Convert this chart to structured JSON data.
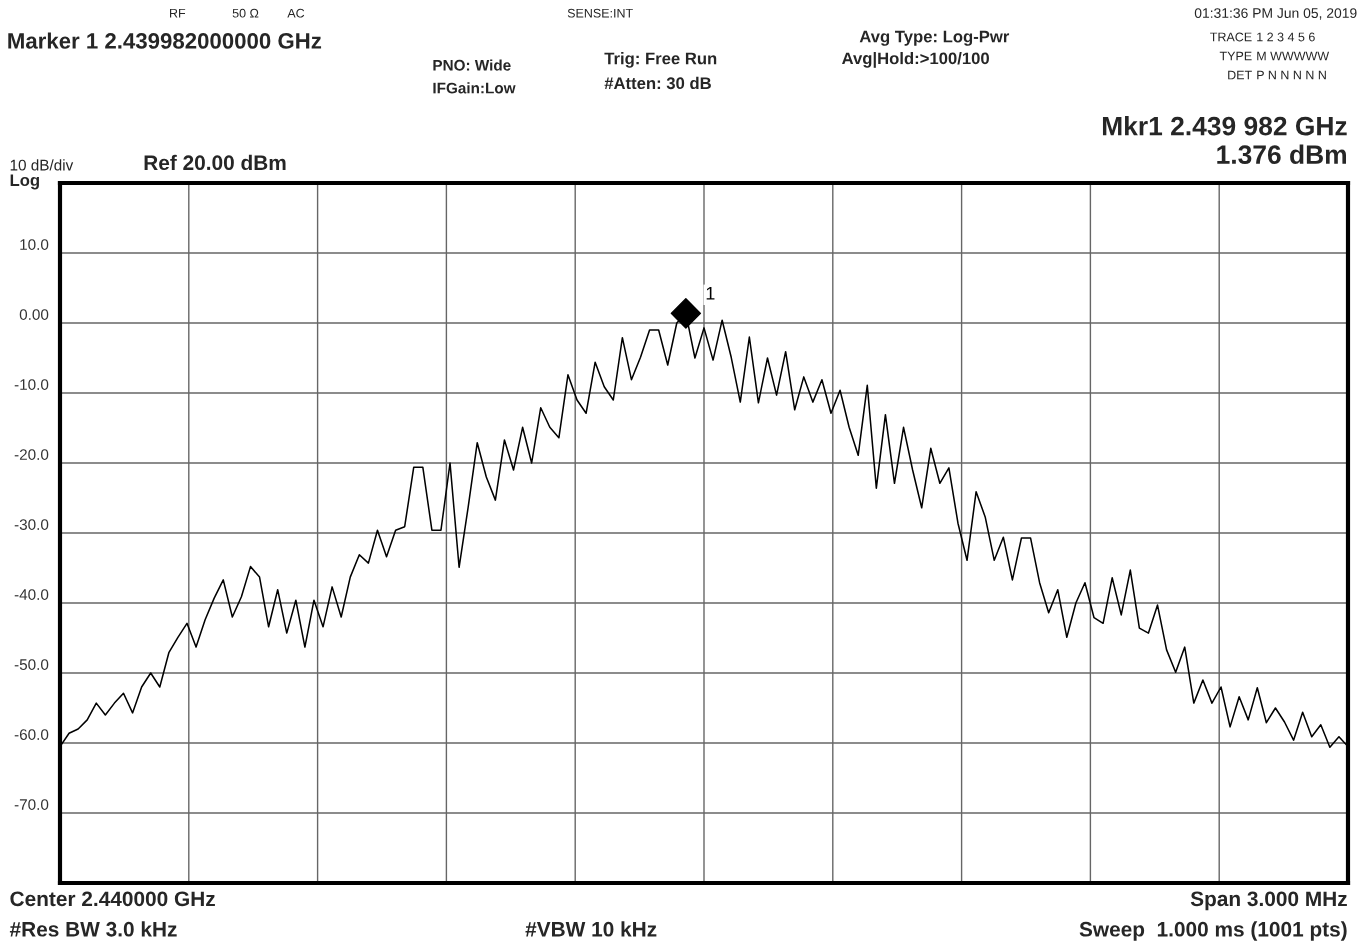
{
  "chart_data": {
    "type": "line",
    "title": "Marker 1 2.439982000000 GHz",
    "categories": [
      null,
      null,
      null,
      null,
      null,
      null,
      null,
      null,
      null,
      null,
      null,
      null,
      null,
      null,
      null,
      null,
      null,
      null,
      null,
      null,
      null,
      null,
      null,
      null,
      null,
      null,
      null,
      null,
      null,
      null,
      null,
      null,
      null,
      null,
      null,
      null,
      null,
      null,
      null,
      null,
      null,
      null,
      null,
      null,
      null,
      null,
      null,
      null,
      null,
      null,
      null,
      null,
      null,
      null,
      null,
      null,
      null,
      null,
      null,
      null,
      null,
      null,
      null,
      null,
      null,
      null,
      null,
      null,
      null,
      null,
      null,
      null,
      null,
      null,
      null,
      null,
      null,
      null,
      null,
      null,
      null,
      null,
      null,
      null,
      null,
      null,
      null,
      null,
      null,
      null,
      null,
      null,
      null,
      null,
      null,
      null,
      null,
      null,
      null,
      null,
      null,
      null,
      null,
      null,
      null,
      null,
      null,
      null,
      null,
      null,
      null,
      null,
      null,
      null,
      null,
      null,
      null,
      null,
      null,
      null,
      null,
      null,
      null,
      null,
      null,
      null,
      null,
      null,
      null,
      null,
      null,
      null,
      null,
      null,
      null,
      null,
      null,
      null,
      null,
      null,
      null,
      null,
      null
    ],
    "series": [
      {
        "color": "#000000",
        "line_style": "solid",
        "values": [
          -60.5,
          -58.6,
          -58.0,
          -56.7,
          -54.3,
          -56.0,
          -54.3,
          -52.9,
          -55.7,
          -52.0,
          -50.0,
          -52.0,
          -47.1,
          -44.9,
          -42.9,
          -46.3,
          -42.4,
          -39.3,
          -36.7,
          -42.0,
          -39.1,
          -34.8,
          -36.3,
          -43.4,
          -38.1,
          -44.3,
          -39.6,
          -46.3,
          -39.6,
          -43.4,
          -37.7,
          -42.0,
          -36.3,
          -33.1,
          -34.3,
          -29.6,
          -33.4,
          -29.6,
          -29.1,
          -20.6,
          -20.6,
          -29.6,
          -29.6,
          -20.0,
          -34.9,
          -26.3,
          -17.1,
          -22.0,
          -25.3,
          -16.7,
          -21.0,
          -14.9,
          -20.0,
          -12.1,
          -14.9,
          -16.4,
          -7.4,
          -11.0,
          -12.9,
          -5.6,
          -9.1,
          -11.0,
          -2.1,
          -8.1,
          -4.9,
          -1.0,
          -1.0,
          -6.0,
          0.0,
          1.4,
          -5.0,
          -0.7,
          -5.3,
          0.4,
          -4.9,
          -11.3,
          -2.0,
          -11.4,
          -5.0,
          -10.3,
          -4.1,
          -12.4,
          -7.7,
          -11.3,
          -8.1,
          -12.9,
          -9.6,
          -14.9,
          -18.9,
          -8.9,
          -23.6,
          -13.1,
          -22.9,
          -14.9,
          -21.0,
          -26.4,
          -17.9,
          -22.9,
          -20.7,
          -28.6,
          -33.9,
          -24.1,
          -27.7,
          -33.9,
          -30.6,
          -36.7,
          -30.7,
          -30.7,
          -37.1,
          -41.4,
          -38.1,
          -44.9,
          -40.0,
          -37.1,
          -42.1,
          -42.9,
          -36.4,
          -41.7,
          -35.3,
          -43.6,
          -44.3,
          -40.3,
          -46.7,
          -49.9,
          -46.3,
          -54.3,
          -51.0,
          -54.3,
          -52.0,
          -57.7,
          -53.4,
          -56.7,
          -52.1,
          -57.1,
          -55.0,
          -57.0,
          -59.6,
          -55.6,
          -59.1,
          -57.4,
          -60.6,
          -59.1,
          -60.5
        ]
      },
      {
        "type": "scatter",
        "color": "#000000",
        "marker": "diamond",
        "values": [
          null,
          null,
          null,
          null,
          null,
          null,
          null,
          null,
          null,
          null,
          null,
          null,
          null,
          null,
          null,
          null,
          null,
          null,
          null,
          null,
          null,
          null,
          null,
          null,
          null,
          null,
          null,
          null,
          null,
          null,
          null,
          null,
          null,
          null,
          null,
          null,
          null,
          null,
          null,
          null,
          null,
          null,
          null,
          null,
          null,
          null,
          null,
          null,
          null,
          null,
          null,
          null,
          null,
          null,
          null,
          null,
          null,
          null,
          null,
          null,
          null,
          null,
          null,
          null,
          null,
          null,
          null,
          null,
          null,
          1.376,
          null,
          null,
          null,
          null,
          null,
          null,
          null,
          null,
          null,
          null,
          null,
          null,
          null,
          null,
          null,
          null,
          null,
          null,
          null,
          null,
          null,
          null,
          null,
          null,
          null,
          null,
          null,
          null,
          null,
          null,
          null,
          null,
          null,
          null,
          null,
          null,
          null,
          null,
          null,
          null,
          null,
          null,
          null,
          null,
          null,
          null,
          null,
          null,
          null,
          null,
          null,
          null,
          null,
          null,
          null,
          null,
          null,
          null,
          null,
          null,
          null,
          null,
          null,
          null,
          null,
          null,
          null,
          null,
          null,
          null,
          null,
          null,
          null
        ],
        "value_labels": [
          null,
          null,
          null,
          null,
          null,
          null,
          null,
          null,
          null,
          null,
          null,
          null,
          null,
          null,
          null,
          null,
          null,
          null,
          null,
          null,
          null,
          null,
          null,
          null,
          null,
          null,
          null,
          null,
          null,
          null,
          null,
          null,
          null,
          null,
          null,
          null,
          null,
          null,
          null,
          null,
          null,
          null,
          null,
          null,
          null,
          null,
          null,
          null,
          null,
          null,
          null,
          null,
          null,
          null,
          null,
          null,
          null,
          null,
          null,
          null,
          null,
          null,
          null,
          null,
          null,
          null,
          null,
          null,
          null,
          "1",
          null,
          null,
          null,
          null,
          null,
          null,
          null,
          null,
          null,
          null,
          null,
          null,
          null,
          null,
          null,
          null,
          null,
          null,
          null,
          null,
          null,
          null,
          null,
          null,
          null,
          null,
          null,
          null,
          null,
          null,
          null,
          null,
          null,
          null,
          null,
          null,
          null,
          null,
          null,
          null,
          null,
          null,
          null,
          null,
          null,
          null,
          null,
          null,
          null,
          null,
          null,
          null,
          null,
          null,
          null,
          null,
          null,
          null,
          null,
          null,
          null,
          null,
          null,
          null,
          null,
          null,
          null,
          null,
          null,
          null,
          null,
          null,
          null
        ]
      }
    ],
    "ylim": [
      -80,
      20
    ],
    "yticks": [
      {
        "value": 10,
        "label": "10.0"
      },
      {
        "value": 0,
        "label": "0.00"
      },
      {
        "value": -10,
        "label": "-10.0"
      },
      {
        "value": -20,
        "label": "-20.0"
      },
      {
        "value": -30,
        "label": "-30.0"
      },
      {
        "value": -40,
        "label": "-40.0"
      },
      {
        "value": -50,
        "label": "-50.0"
      },
      {
        "value": -60,
        "label": "-60.0"
      },
      {
        "value": -70,
        "label": "-70.0"
      }
    ],
    "grid": true,
    "tick_labels": "y",
    "annotations": [
      "RF",
      "50 Ω",
      "AC",
      "SENSE:INT",
      "01:31:36 PM Jun 05, 2019",
      "PNO: Wide",
      "IFGain:Low",
      "Trig: Free Run",
      "#Atten: 30 dB",
      "Avg Type: Log-Pwr",
      "Avg|Hold:>100/100",
      "TRACE",
      "1 2 3 4 5 6",
      "TYPE",
      "M WWWWW",
      "DET",
      "P N N N N N",
      "Mkr1 2.439 982 GHz",
      "1.376 dBm",
      "10 dB/div",
      "Log",
      "Ref 20.00 dBm",
      "Center 2.440000 GHz",
      "Span 3.000 MHz",
      "#Res BW 3.0 kHz",
      "#VBW 10 kHz",
      "Sweep  1.000 ms (1001 pts)"
    ]
  }
}
